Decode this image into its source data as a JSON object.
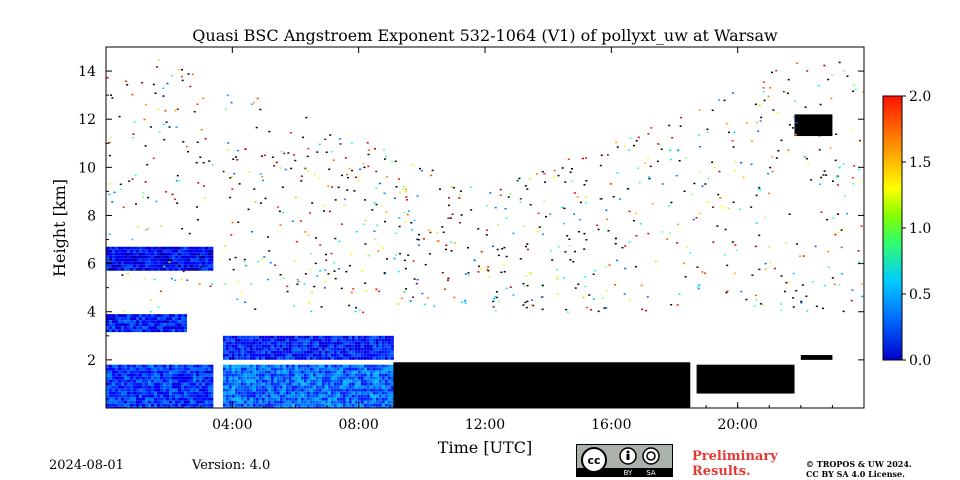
{
  "chart_data": {
    "type": "heatmap",
    "title": "Quasi BSC Angstroem Exponent 532-1064 (V1) of pollyxt_uw at Warsaw",
    "xlabel": "Time [UTC]",
    "ylabel": "Height [km]",
    "xlim": [
      0,
      24
    ],
    "ylim": [
      0,
      15
    ],
    "x_ticks": [
      4,
      8,
      12,
      16,
      20
    ],
    "x_tick_labels": [
      "04:00",
      "08:00",
      "12:00",
      "16:00",
      "20:00"
    ],
    "y_ticks": [
      2,
      4,
      6,
      8,
      10,
      12,
      14
    ],
    "y_tick_labels": [
      "2",
      "4",
      "6",
      "8",
      "10",
      "12",
      "14"
    ],
    "colorbar": {
      "min": 0.0,
      "max": 2.0,
      "ticks": [
        0.0,
        0.5,
        1.0,
        1.5,
        2.0
      ],
      "tick_labels": [
        "0.0",
        "0.5",
        "1.0",
        "1.5",
        "2.0"
      ],
      "colormap": "jet"
    },
    "regions": [
      {
        "kind": "values",
        "t0": 0.0,
        "t1": 3.4,
        "h0": 0.0,
        "h1": 1.8,
        "level": 0.35
      },
      {
        "kind": "values",
        "t0": 3.7,
        "t1": 9.1,
        "h0": 0.0,
        "h1": 1.8,
        "level": 0.45
      },
      {
        "kind": "values",
        "t0": 3.7,
        "t1": 9.1,
        "h0": 2.1,
        "h1": 3.0,
        "level": 0.3
      },
      {
        "kind": "values",
        "t0": 0.0,
        "t1": 3.4,
        "h0": 5.8,
        "h1": 6.7,
        "level": 0.25
      },
      {
        "kind": "values",
        "t0": 0.0,
        "t1": 2.5,
        "h0": 3.2,
        "h1": 3.9,
        "level": 0.3
      },
      {
        "kind": "masked",
        "t0": 9.1,
        "t1": 18.5,
        "h0": 0.0,
        "h1": 1.9
      },
      {
        "kind": "masked",
        "t0": 18.7,
        "t1": 21.8,
        "h0": 0.6,
        "h1": 1.8
      },
      {
        "kind": "masked",
        "t0": 21.8,
        "t1": 23.0,
        "h0": 11.3,
        "h1": 12.2
      },
      {
        "kind": "masked",
        "t0": 22.0,
        "t1": 23.0,
        "h0": 2.0,
        "h1": 2.2
      }
    ]
  },
  "footer": {
    "date": "2024-08-01",
    "version": "Version: 4.0",
    "preliminary_line1": "Preliminary",
    "preliminary_line2": "Results.",
    "copyright_line1": "© TROPOS & UW 2024.",
    "copyright_line2": "CC BY SA 4.0 License.",
    "badge_by": "BY",
    "badge_sa": "SA",
    "badge_cc": "cc"
  },
  "colors": {
    "masked": "#000000",
    "prelim_text": "#e53935",
    "badge_bg": "#aab2ab"
  }
}
